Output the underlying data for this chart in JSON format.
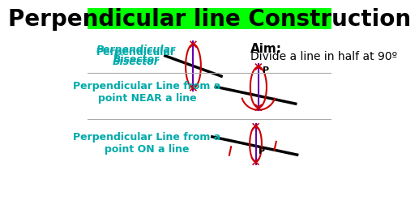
{
  "title": "Perpendicular line Construction",
  "title_bg": "#00ff00",
  "title_color": "#000000",
  "title_fontsize": 20,
  "label1": "Perpendicular\nBisector",
  "label2": "Perpendicular Line from a\npoint NEAR a line",
  "label3": "Perpendicular Line from a\npoint ON a line",
  "aim_title": "Aim:",
  "aim_body": "Divide a line in half at 90º",
  "label_color": "#00aaaa",
  "line_color": "#000000",
  "arc_color": "#cc0000",
  "perp_color": "#6600aa",
  "tick_color": "#cc0000",
  "p_label_color": "#000000",
  "bg_color": "#ffffff"
}
